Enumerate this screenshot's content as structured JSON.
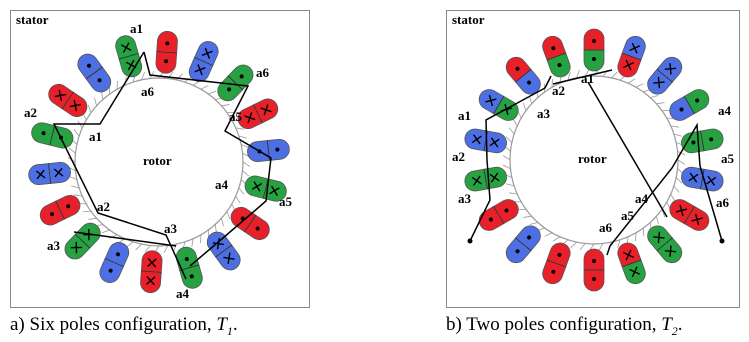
{
  "colors": {
    "red": "#e8202a",
    "green": "#27a243",
    "blue": "#4d6fe3",
    "frame": "#8a8a8a"
  },
  "panels": [
    {
      "id": "a",
      "stator_label": "stator",
      "rotor_label": "rotor",
      "caption_prefix": "a) Six poles configuration, ",
      "caption_var": "T",
      "caption_sub": "1",
      "caption_suffix": ".",
      "slots": [
        {
          "color": "red",
          "outer": "dot",
          "inner": "dot"
        },
        {
          "color": "blue",
          "outer": "cross",
          "inner": "cross"
        },
        {
          "color": "green",
          "outer": "dot",
          "inner": "dot"
        },
        {
          "color": "red",
          "outer": "cross",
          "inner": "cross"
        },
        {
          "color": "blue",
          "outer": "dot",
          "inner": "dot"
        },
        {
          "color": "green",
          "outer": "cross",
          "inner": "cross"
        },
        {
          "color": "red",
          "outer": "dot",
          "inner": "dot"
        },
        {
          "color": "blue",
          "outer": "cross",
          "inner": "cross"
        },
        {
          "color": "green",
          "outer": "dot",
          "inner": "dot"
        },
        {
          "color": "red",
          "outer": "cross",
          "inner": "cross"
        },
        {
          "color": "blue",
          "outer": "dot",
          "inner": "dot"
        },
        {
          "color": "green",
          "outer": "cross",
          "inner": "cross"
        },
        {
          "color": "red",
          "outer": "dot",
          "inner": "dot"
        },
        {
          "color": "blue",
          "outer": "cross",
          "inner": "cross"
        },
        {
          "color": "green",
          "outer": "dot",
          "inner": "dot"
        },
        {
          "color": "red",
          "outer": "cross",
          "inner": "cross"
        },
        {
          "color": "blue",
          "outer": "dot",
          "inner": "dot"
        },
        {
          "color": "green",
          "outer": "cross",
          "inner": "cross"
        }
      ],
      "labels": [
        "a1",
        "a6",
        "a6",
        "a5",
        "a2",
        "a1",
        "a5",
        "a4",
        "a2",
        "a3",
        "a3",
        "a4"
      ]
    },
    {
      "id": "b",
      "stator_label": "stator",
      "rotor_label": "rotor",
      "caption_prefix": "b) Two poles configuration, ",
      "caption_var": "T",
      "caption_sub": "2",
      "caption_suffix": ".",
      "slots": [
        {
          "color": "red",
          "outer": "dot",
          "inner": "green-dot"
        },
        {
          "color": "blue",
          "outer": "cross",
          "inner": "red-cross"
        },
        {
          "color": "blue",
          "outer": "cross",
          "inner": "cross"
        },
        {
          "color": "green",
          "outer": "dot",
          "inner": "blue-dot"
        },
        {
          "color": "green",
          "outer": "dot",
          "inner": "dot"
        },
        {
          "color": "blue",
          "outer": "cross",
          "inner": "cross"
        },
        {
          "color": "red",
          "outer": "cross",
          "inner": "cross"
        },
        {
          "color": "green",
          "outer": "cross",
          "inner": "cross"
        },
        {
          "color": "green",
          "outer": "cross",
          "inner": "red-cross"
        },
        {
          "color": "red",
          "outer": "dot",
          "inner": "dot"
        },
        {
          "color": "red",
          "outer": "dot",
          "inner": "dot"
        },
        {
          "color": "blue",
          "outer": "dot",
          "inner": "dot"
        },
        {
          "color": "red",
          "outer": "dot",
          "inner": "dot"
        },
        {
          "color": "green",
          "outer": "cross",
          "inner": "cross"
        },
        {
          "color": "blue",
          "outer": "cross",
          "inner": "blue-cross"
        },
        {
          "color": "blue",
          "outer": "cross",
          "inner": "green-cross"
        },
        {
          "color": "red",
          "outer": "dot",
          "inner": "blue-dot"
        },
        {
          "color": "red",
          "outer": "dot",
          "inner": "green-dot"
        }
      ],
      "labels": [
        "a2",
        "a1",
        "a1",
        "a3",
        "a4",
        "a2",
        "a5",
        "a3",
        "a6",
        "a4",
        "a5",
        "a6"
      ]
    }
  ]
}
